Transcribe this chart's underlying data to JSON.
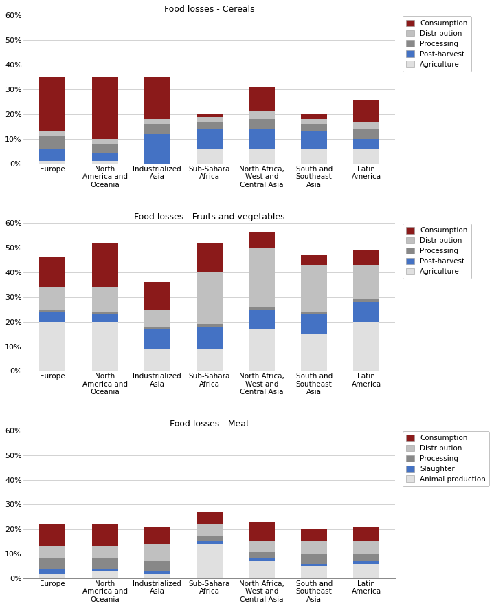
{
  "regions": [
    "Europe",
    "North\nAmerica and\nOceania",
    "Industrialized\nAsia",
    "Sub-Sahara\nAfrica",
    "North Africa,\nWest and\nCentral Asia",
    "South and\nSoutheast\nAsia",
    "Latin\nAmerica"
  ],
  "cereals": {
    "title": "Food losses - Cereals",
    "layers": [
      "Agriculture",
      "Post-harvest",
      "Processing",
      "Distribution",
      "Consumption"
    ],
    "colors": [
      "#e0e0e0",
      "#4472c4",
      "#888888",
      "#c0c0c0",
      "#8b1a1a"
    ],
    "data": [
      [
        1,
        5,
        5,
        2,
        22
      ],
      [
        1,
        3,
        4,
        2,
        25
      ],
      [
        0,
        12,
        4,
        2,
        17
      ],
      [
        6,
        8,
        3,
        2,
        1
      ],
      [
        6,
        8,
        4,
        3,
        10
      ],
      [
        6,
        7,
        3,
        2,
        2
      ],
      [
        6,
        4,
        4,
        3,
        9
      ]
    ]
  },
  "fruits_veg": {
    "title": "Food losses - Fruits and vegetables",
    "layers": [
      "Agriculture",
      "Post-harvest",
      "Processing",
      "Distribution",
      "Consumption"
    ],
    "colors": [
      "#e0e0e0",
      "#4472c4",
      "#888888",
      "#c0c0c0",
      "#8b1a1a"
    ],
    "data": [
      [
        20,
        4,
        1,
        9,
        12
      ],
      [
        20,
        3,
        1,
        10,
        18
      ],
      [
        9,
        8,
        1,
        7,
        11
      ],
      [
        9,
        9,
        1,
        21,
        12
      ],
      [
        17,
        8,
        1,
        24,
        6
      ],
      [
        15,
        8,
        1,
        19,
        4
      ],
      [
        20,
        8,
        1,
        14,
        6
      ]
    ]
  },
  "meat": {
    "title": "Food losses - Meat",
    "layers": [
      "Animal production",
      "Slaughter",
      "Processing",
      "Distribution",
      "Consumption"
    ],
    "colors": [
      "#e0e0e0",
      "#4472c4",
      "#888888",
      "#c0c0c0",
      "#8b1a1a"
    ],
    "data": [
      [
        2,
        2,
        4,
        5,
        9
      ],
      [
        3,
        1,
        4,
        5,
        9
      ],
      [
        2,
        1,
        4,
        7,
        7
      ],
      [
        14,
        1,
        2,
        5,
        5
      ],
      [
        7,
        1,
        3,
        4,
        8
      ],
      [
        5,
        1,
        4,
        5,
        5
      ],
      [
        6,
        1,
        3,
        5,
        6
      ]
    ]
  },
  "ylim": [
    0,
    0.6
  ],
  "yticks": [
    0.0,
    0.1,
    0.2,
    0.3,
    0.4,
    0.5,
    0.6
  ],
  "ytick_labels": [
    "0%",
    "10%",
    "20%",
    "30%",
    "40%",
    "50%",
    "60%"
  ],
  "fig_bg": "#ffffff",
  "legend_labels_12": [
    "Consumption",
    "Distribution",
    "Processing",
    "Post-harvest",
    "Agriculture"
  ],
  "legend_labels_3": [
    "Consumption",
    "Distribution",
    "Processing",
    "Slaughter",
    "Animal production"
  ],
  "legend_colors_12": [
    "#8b1a1a",
    "#c0c0c0",
    "#888888",
    "#4472c4",
    "#e0e0e0"
  ],
  "legend_colors_3": [
    "#8b1a1a",
    "#c0c0c0",
    "#888888",
    "#4472c4",
    "#e0e0e0"
  ]
}
